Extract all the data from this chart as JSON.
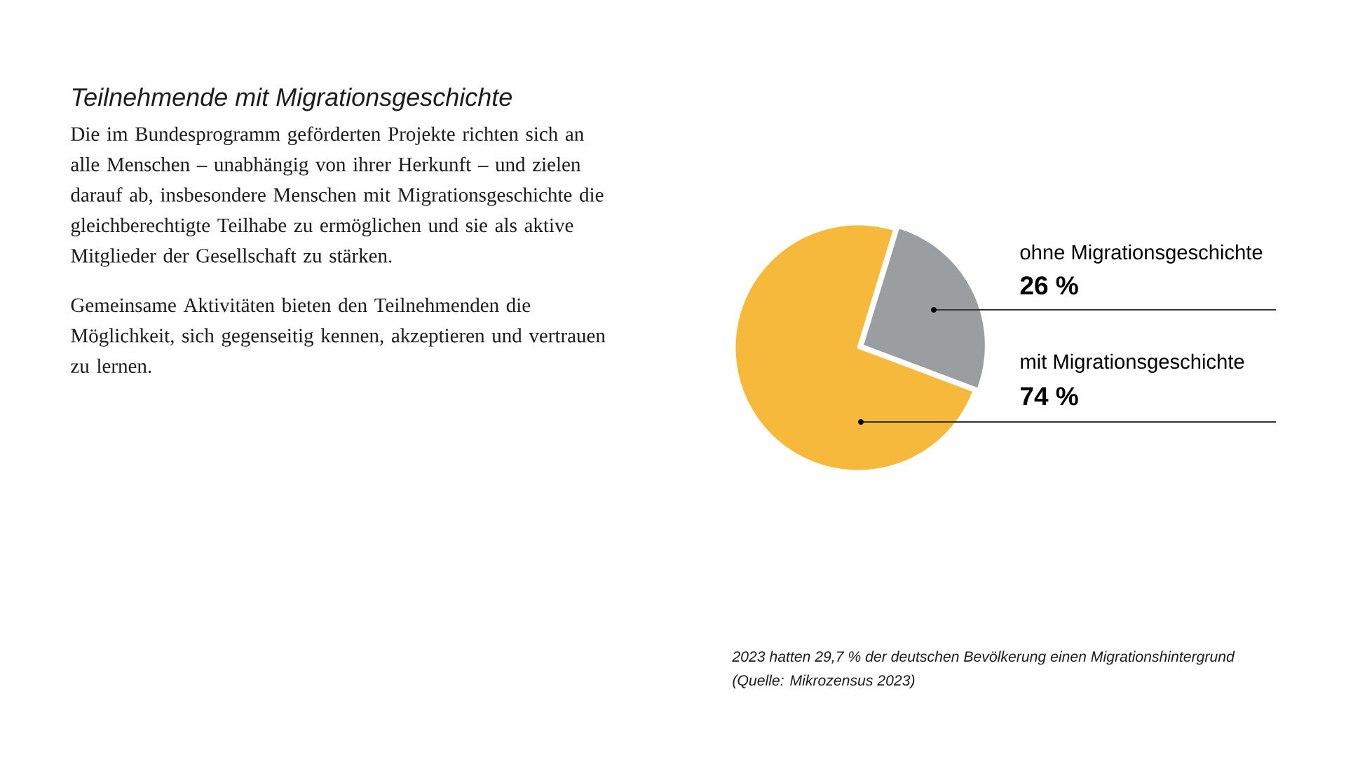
{
  "chart_data": {
    "type": "pie",
    "title": "Teilnehmende mit Migrationsgeschichte",
    "subtitle": "Die im Bundesprogramm geförderten Projekte richten sich an alle Menschen – unabhängig von ihrer Herkunft – und zielen darauf ab, insbesondere Menschen mit Migrationsgeschichte die gleichberechtigte Teilhabe zu ermöglichen und sie als aktive Mitglieder der Gesellschaft zu stärken.",
    "annotations": [
      "Gemeinsame Aktivitäten bieten den Teilnehmenden die Möglichkeit, sich gegenseitig kennen, akzeptieren und vertrauen zu lernen.",
      "2023 hatten 29,7 % der deutschen Bevölkerung einen Migrationshintergrund",
      "(Quelle: Mikrozensus 2023)"
    ],
    "categories": [
      "ohne Migrationsgeschichte",
      "mit Migrationsgeschichte"
    ],
    "values": [
      26,
      74
    ],
    "colors": [
      "#9b9ea0",
      "#f6b93b"
    ],
    "value_labels": [
      "26 %",
      "74 %"
    ]
  }
}
